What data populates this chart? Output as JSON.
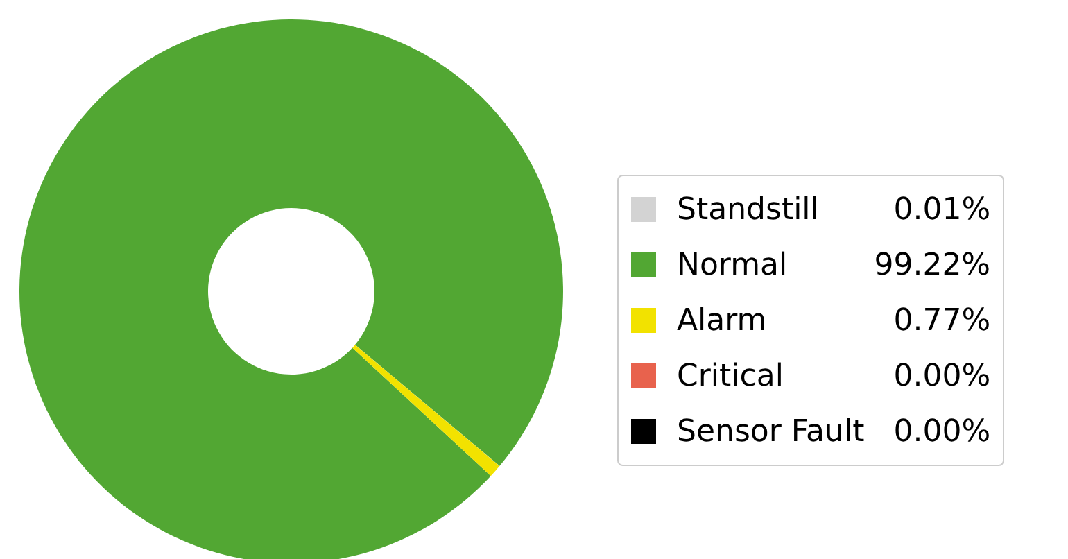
{
  "chart_data": {
    "type": "donut",
    "categories": [
      "Standstill",
      "Normal",
      "Alarm",
      "Critical",
      "Sensor Fault"
    ],
    "values": [
      0.01,
      99.22,
      0.77,
      0.0,
      0.0
    ],
    "value_labels": [
      "0.01%",
      "99.22%",
      "0.77%",
      "0.00%",
      "0.00%"
    ],
    "colors": [
      "#d3d3d3",
      "#52a733",
      "#f2e200",
      "#e8624d",
      "#000000"
    ],
    "legend": "right"
  }
}
